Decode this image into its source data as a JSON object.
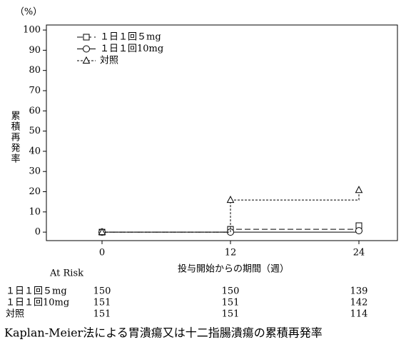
{
  "chart_data": {
    "type": "step",
    "title": "Kaplan-Meier法による胃潰瘍又は十二指腸潰瘍の累積再発率",
    "y_unit": "（%）",
    "y_label": "累積再発率",
    "x_label": "投与開始からの期間（週）",
    "at_risk_label": "At Risk",
    "x": [
      0,
      12,
      24
    ],
    "xlim": [
      -5.2,
      27.6
    ],
    "xticks": [
      0,
      12,
      24
    ],
    "ylim": [
      -4.2,
      102.5
    ],
    "yticks": [
      0,
      10,
      20,
      30,
      40,
      50,
      60,
      70,
      80,
      90,
      100
    ],
    "series": [
      {
        "name": "１日１回５mg",
        "color": "#000000",
        "line": "dash",
        "marker": "square",
        "values": [
          0,
          1.4,
          3.2
        ],
        "at_risk": [
          150,
          150,
          139
        ]
      },
      {
        "name": "１日１回10mg",
        "color": "#000000",
        "line": "solid",
        "marker": "circle",
        "values": [
          0,
          0,
          0.7
        ],
        "at_risk": [
          151,
          151,
          142
        ]
      },
      {
        "name": "対照",
        "color": "#000000",
        "line": "dot",
        "marker": "triangle",
        "values": [
          0,
          15.9,
          20.8
        ],
        "at_risk": [
          151,
          151,
          114
        ]
      }
    ]
  }
}
